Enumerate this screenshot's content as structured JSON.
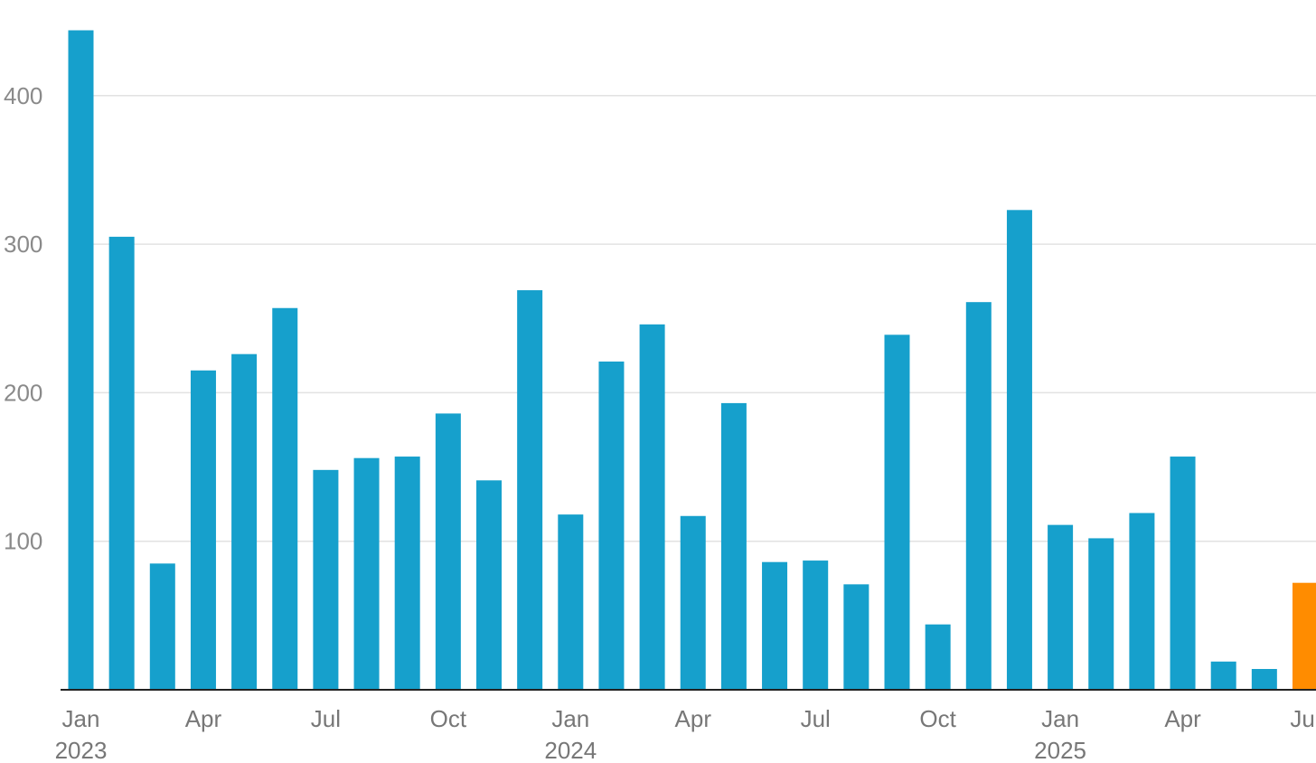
{
  "chart_data": {
    "type": "bar",
    "title": "",
    "xlabel": "",
    "ylabel": "",
    "ylim": [
      0,
      445
    ],
    "grid": true,
    "yticks": [
      100,
      200,
      300,
      400
    ],
    "categories": [
      "2023-01",
      "2023-02",
      "2023-03",
      "2023-04",
      "2023-05",
      "2023-06",
      "2023-07",
      "2023-08",
      "2023-09",
      "2023-10",
      "2023-11",
      "2023-12",
      "2024-01",
      "2024-02",
      "2024-03",
      "2024-04",
      "2024-05",
      "2024-06",
      "2024-07",
      "2024-08",
      "2024-09",
      "2024-10",
      "2024-11",
      "2024-12",
      "2025-01",
      "2025-02",
      "2025-03",
      "2025-04",
      "2025-05",
      "2025-06",
      "2025-07"
    ],
    "values": [
      444,
      305,
      85,
      215,
      226,
      257,
      148,
      156,
      157,
      186,
      141,
      269,
      118,
      221,
      246,
      117,
      193,
      86,
      87,
      71,
      239,
      44,
      261,
      323,
      111,
      102,
      119,
      157,
      19,
      14,
      72
    ],
    "highlight_index": 30,
    "x_tick_labels": [
      {
        "index": 0,
        "month": "Jan",
        "year": "2023"
      },
      {
        "index": 3,
        "month": "Apr",
        "year": ""
      },
      {
        "index": 6,
        "month": "Jul",
        "year": ""
      },
      {
        "index": 9,
        "month": "Oct",
        "year": ""
      },
      {
        "index": 12,
        "month": "Jan",
        "year": "2024"
      },
      {
        "index": 15,
        "month": "Apr",
        "year": ""
      },
      {
        "index": 18,
        "month": "Jul",
        "year": ""
      },
      {
        "index": 21,
        "month": "Oct",
        "year": ""
      },
      {
        "index": 24,
        "month": "Jan",
        "year": "2025"
      },
      {
        "index": 27,
        "month": "Apr",
        "year": ""
      },
      {
        "index": 30,
        "month": "Jul",
        "year": ""
      }
    ],
    "colors": {
      "bar": "#16a0cc",
      "highlight": "#ff8c00",
      "grid": "#e2e2e2",
      "axis": "#222222",
      "tick_text": "#8a8a8a"
    }
  }
}
